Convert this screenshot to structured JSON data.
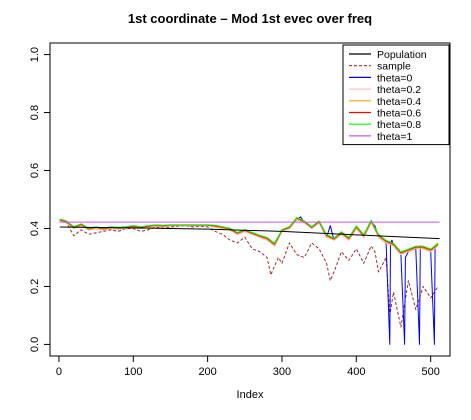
{
  "chart_data": {
    "type": "line",
    "title": "1st coordinate – Mod 1st evec over freq",
    "xlabel": "Index",
    "ylabel": "",
    "xlim": [
      0,
      520
    ],
    "ylim": [
      0,
      1.0
    ],
    "xticks": [
      "0",
      "100",
      "200",
      "300",
      "400",
      "500"
    ],
    "yticks": [
      "0.0",
      "0.2",
      "0.4",
      "0.6",
      "0.8",
      "1.0"
    ],
    "grid": false,
    "legend_position": "top-right",
    "series": [
      {
        "name": "Population",
        "color": "#000000",
        "style": "solid",
        "x": [
          1,
          100,
          200,
          300,
          400,
          512
        ],
        "y": [
          0.405,
          0.402,
          0.398,
          0.39,
          0.378,
          0.365
        ]
      },
      {
        "name": "sample",
        "color": "#a52a2a",
        "style": "dashed",
        "x": [
          1,
          10,
          20,
          30,
          40,
          50,
          60,
          70,
          80,
          90,
          100,
          110,
          120,
          130,
          140,
          150,
          160,
          170,
          180,
          190,
          200,
          210,
          220,
          230,
          240,
          250,
          260,
          270,
          280,
          285,
          290,
          295,
          300,
          310,
          320,
          330,
          340,
          350,
          360,
          365,
          370,
          380,
          390,
          400,
          410,
          420,
          425,
          430,
          440,
          445,
          450,
          460,
          470,
          480,
          490,
          500,
          510
        ],
        "y": [
          0.425,
          0.42,
          0.375,
          0.395,
          0.38,
          0.385,
          0.39,
          0.395,
          0.39,
          0.4,
          0.4,
          0.39,
          0.395,
          0.405,
          0.4,
          0.405,
          0.408,
          0.41,
          0.405,
          0.408,
          0.405,
          0.39,
          0.38,
          0.36,
          0.35,
          0.37,
          0.33,
          0.32,
          0.3,
          0.24,
          0.27,
          0.3,
          0.28,
          0.35,
          0.31,
          0.3,
          0.35,
          0.33,
          0.28,
          0.22,
          0.25,
          0.32,
          0.29,
          0.33,
          0.28,
          0.34,
          0.32,
          0.25,
          0.3,
          0.1,
          0.18,
          0.06,
          0.22,
          0.12,
          0.2,
          0.16,
          0.2
        ]
      },
      {
        "name": "theta=0",
        "color": "#0000ff",
        "style": "solid",
        "x": [
          1,
          10,
          20,
          30,
          40,
          50,
          60,
          70,
          80,
          90,
          100,
          110,
          120,
          130,
          140,
          150,
          160,
          170,
          180,
          190,
          200,
          210,
          220,
          230,
          240,
          250,
          260,
          270,
          280,
          290,
          300,
          310,
          320,
          325,
          330,
          340,
          350,
          360,
          365,
          370,
          380,
          390,
          400,
          410,
          420,
          425,
          430,
          440,
          445,
          446,
          448,
          450,
          460,
          465,
          466,
          470,
          480,
          485,
          486,
          490,
          500,
          505,
          506,
          510
        ],
        "y": [
          0.425,
          0.42,
          0.4,
          0.41,
          0.395,
          0.4,
          0.395,
          0.4,
          0.398,
          0.4,
          0.405,
          0.4,
          0.405,
          0.408,
          0.405,
          0.41,
          0.41,
          0.41,
          0.41,
          0.41,
          0.41,
          0.405,
          0.4,
          0.395,
          0.38,
          0.39,
          0.38,
          0.37,
          0.36,
          0.34,
          0.39,
          0.4,
          0.43,
          0.44,
          0.42,
          0.4,
          0.42,
          0.37,
          0.41,
          0.36,
          0.38,
          0.36,
          0.4,
          0.37,
          0.42,
          0.41,
          0.37,
          0.35,
          0.0,
          0.35,
          0.36,
          0.34,
          0.31,
          0.0,
          0.3,
          0.32,
          0.33,
          0.0,
          0.34,
          0.33,
          0.32,
          0.0,
          0.34,
          0.34
        ]
      },
      {
        "name": "theta=0.2",
        "color": "#ffc0cb",
        "style": "solid",
        "x": [
          1,
          10,
          20,
          30,
          40,
          50,
          60,
          70,
          80,
          90,
          100,
          110,
          120,
          130,
          140,
          150,
          160,
          170,
          180,
          190,
          200,
          210,
          220,
          230,
          240,
          250,
          260,
          270,
          280,
          290,
          300,
          310,
          320,
          330,
          340,
          350,
          360,
          370,
          380,
          390,
          400,
          410,
          420,
          430,
          440,
          450,
          460,
          470,
          480,
          490,
          500,
          510
        ],
        "y": [
          0.425,
          0.42,
          0.4,
          0.41,
          0.395,
          0.4,
          0.395,
          0.4,
          0.398,
          0.4,
          0.405,
          0.4,
          0.405,
          0.408,
          0.405,
          0.41,
          0.41,
          0.41,
          0.41,
          0.41,
          0.41,
          0.405,
          0.4,
          0.395,
          0.38,
          0.39,
          0.38,
          0.37,
          0.36,
          0.34,
          0.39,
          0.4,
          0.43,
          0.42,
          0.4,
          0.42,
          0.37,
          0.36,
          0.38,
          0.36,
          0.4,
          0.37,
          0.42,
          0.37,
          0.35,
          0.34,
          0.31,
          0.32,
          0.33,
          0.33,
          0.32,
          0.34
        ]
      },
      {
        "name": "theta=0.4",
        "color": "#ffa500",
        "style": "solid",
        "x": [
          1,
          10,
          20,
          30,
          40,
          50,
          60,
          70,
          80,
          90,
          100,
          110,
          120,
          130,
          140,
          150,
          160,
          170,
          180,
          190,
          200,
          210,
          220,
          230,
          240,
          250,
          260,
          270,
          280,
          290,
          300,
          310,
          320,
          330,
          340,
          350,
          360,
          370,
          380,
          390,
          400,
          410,
          420,
          430,
          440,
          450,
          460,
          470,
          480,
          490,
          500,
          510
        ],
        "y": [
          0.428,
          0.422,
          0.402,
          0.412,
          0.397,
          0.402,
          0.397,
          0.402,
          0.4,
          0.402,
          0.406,
          0.402,
          0.406,
          0.41,
          0.407,
          0.411,
          0.411,
          0.411,
          0.411,
          0.411,
          0.411,
          0.407,
          0.402,
          0.397,
          0.382,
          0.392,
          0.382,
          0.372,
          0.363,
          0.343,
          0.392,
          0.402,
          0.433,
          0.422,
          0.402,
          0.422,
          0.373,
          0.362,
          0.383,
          0.363,
          0.403,
          0.373,
          0.423,
          0.373,
          0.353,
          0.343,
          0.313,
          0.323,
          0.333,
          0.333,
          0.323,
          0.343
        ]
      },
      {
        "name": "theta=0.6",
        "color": "#ff0000",
        "style": "solid",
        "x": [
          1,
          10,
          20,
          30,
          40,
          50,
          60,
          70,
          80,
          90,
          100,
          110,
          120,
          130,
          140,
          150,
          160,
          170,
          180,
          190,
          200,
          210,
          220,
          230,
          240,
          250,
          260,
          270,
          280,
          290,
          300,
          310,
          320,
          330,
          340,
          350,
          360,
          370,
          380,
          390,
          400,
          410,
          420,
          430,
          440,
          450,
          460,
          470,
          480,
          490,
          500,
          510
        ],
        "y": [
          0.43,
          0.424,
          0.404,
          0.414,
          0.399,
          0.404,
          0.399,
          0.404,
          0.402,
          0.404,
          0.408,
          0.404,
          0.408,
          0.412,
          0.409,
          0.412,
          0.412,
          0.412,
          0.412,
          0.412,
          0.412,
          0.409,
          0.404,
          0.399,
          0.384,
          0.394,
          0.384,
          0.374,
          0.366,
          0.346,
          0.394,
          0.404,
          0.436,
          0.424,
          0.404,
          0.424,
          0.376,
          0.364,
          0.386,
          0.366,
          0.406,
          0.376,
          0.426,
          0.376,
          0.356,
          0.346,
          0.316,
          0.326,
          0.336,
          0.336,
          0.326,
          0.346
        ]
      },
      {
        "name": "theta=0.8",
        "color": "#00ff00",
        "style": "solid",
        "x": [
          1,
          10,
          20,
          30,
          40,
          50,
          60,
          70,
          80,
          90,
          100,
          110,
          120,
          130,
          140,
          150,
          160,
          170,
          180,
          190,
          200,
          210,
          220,
          230,
          240,
          250,
          260,
          270,
          280,
          290,
          300,
          310,
          320,
          330,
          340,
          350,
          360,
          370,
          380,
          390,
          400,
          410,
          420,
          430,
          440,
          450,
          460,
          470,
          480,
          490,
          500,
          510
        ],
        "y": [
          0.432,
          0.426,
          0.406,
          0.416,
          0.401,
          0.406,
          0.401,
          0.406,
          0.404,
          0.406,
          0.41,
          0.406,
          0.41,
          0.413,
          0.411,
          0.413,
          0.413,
          0.413,
          0.413,
          0.413,
          0.413,
          0.411,
          0.406,
          0.401,
          0.386,
          0.396,
          0.386,
          0.376,
          0.369,
          0.349,
          0.396,
          0.406,
          0.438,
          0.426,
          0.406,
          0.426,
          0.379,
          0.366,
          0.389,
          0.369,
          0.409,
          0.379,
          0.429,
          0.379,
          0.359,
          0.349,
          0.319,
          0.329,
          0.339,
          0.339,
          0.329,
          0.349
        ]
      },
      {
        "name": "theta=1",
        "color": "#cc55ee",
        "style": "solid",
        "x": [
          1,
          512
        ],
        "y": [
          0.422,
          0.422
        ]
      }
    ]
  }
}
